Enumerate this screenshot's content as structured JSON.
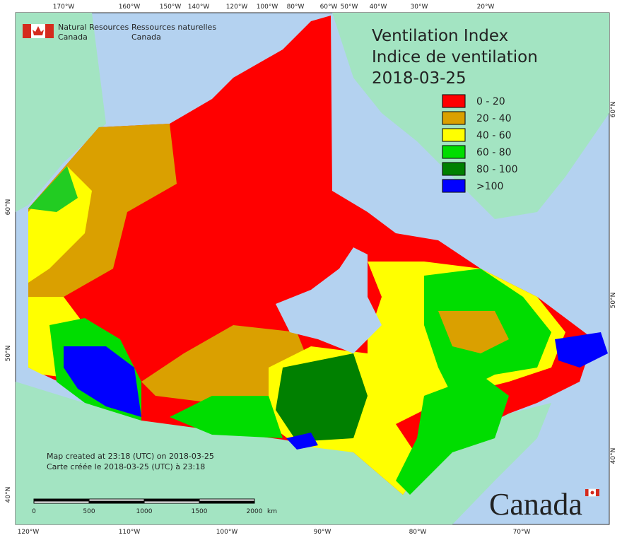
{
  "header": {
    "agency_en": [
      "Natural Resources",
      "Canada"
    ],
    "agency_fr": [
      "Ressources naturelles",
      "Canada"
    ],
    "title": [
      "Ventilation Index",
      "Indice de ventilation",
      "2018-03-25"
    ]
  },
  "legend": [
    {
      "label": "0 - 20",
      "color": "#ff0000"
    },
    {
      "label": "20 - 40",
      "color": "#daa000"
    },
    {
      "label": "40 - 60",
      "color": "#ffff00"
    },
    {
      "label": "60 - 80",
      "color": "#00dd00"
    },
    {
      "label": "80 - 100",
      "color": "#008000"
    },
    {
      "label": ">100",
      "color": "#0000ff"
    }
  ],
  "axes": {
    "top": [
      "170°W",
      "160°W",
      "150°W",
      "140°W",
      "120°W",
      "100°W",
      "80°W",
      "60°W",
      "50°W",
      "40°W",
      "30°W",
      "20°W"
    ],
    "bottom": [
      "120°W",
      "110°W",
      "100°W",
      "90°W",
      "80°W",
      "70°W"
    ],
    "left": [
      "60°N",
      "50°N",
      "40°N"
    ],
    "right": [
      "60°N",
      "50°N",
      "40°N"
    ]
  },
  "footer": {
    "created": [
      "Map created at 23:18 (UTC) on 2018-03-25",
      "Carte créée le 2018-03-25 (UTC) à 23:18"
    ],
    "scale": [
      "0",
      "500",
      "1000",
      "1500",
      "2000",
      "km"
    ],
    "wordmark": "Canada"
  }
}
